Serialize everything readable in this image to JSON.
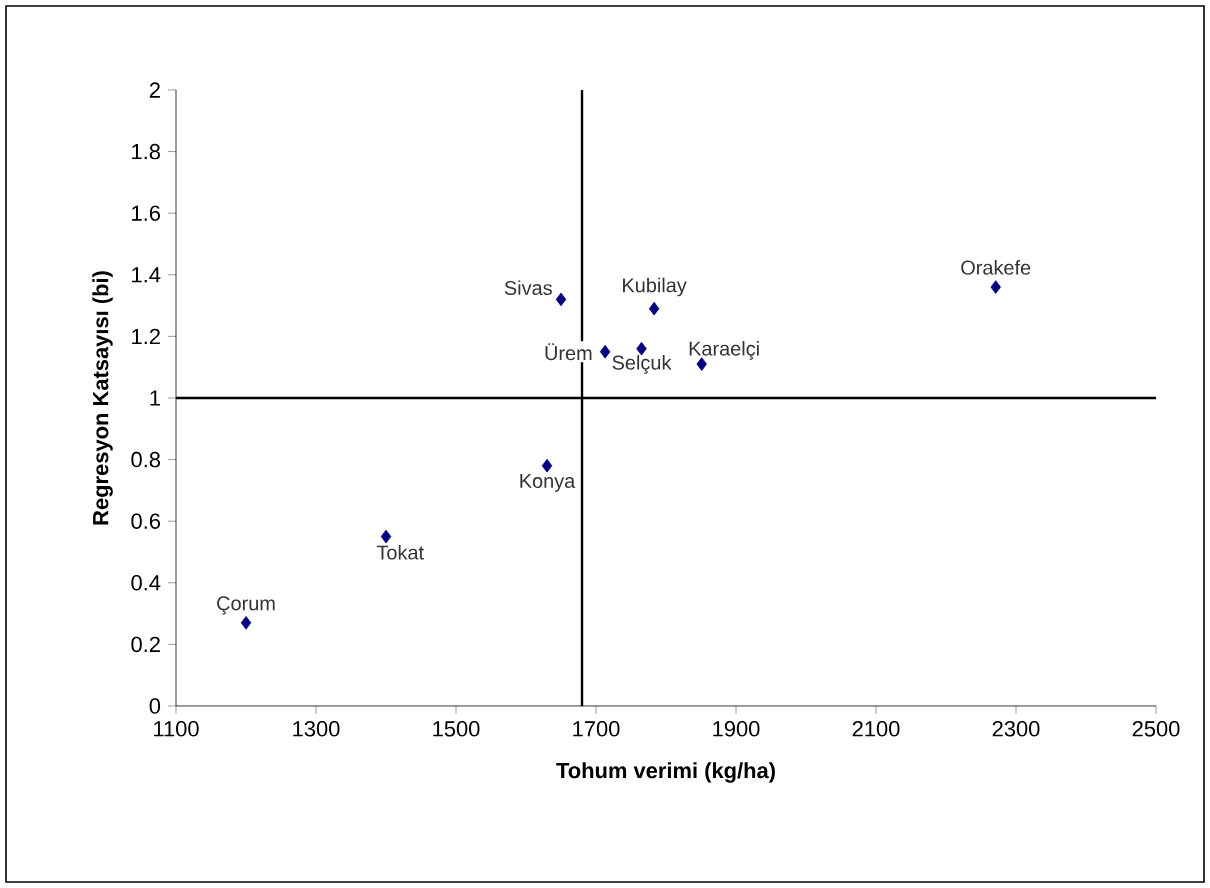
{
  "chart_data": {
    "type": "scatter",
    "xlabel": "Tohum verimi (kg/ha)",
    "ylabel": "Regresyon Katsayısı (bi)",
    "x": [
      1200,
      1400,
      1630,
      1650,
      1713,
      1765,
      1783,
      1851,
      2271
    ],
    "series": [
      {
        "color": "#000080",
        "values": [
          0.27,
          0.55,
          0.78,
          1.32,
          1.15,
          1.16,
          1.29,
          1.11,
          1.36
        ]
      }
    ],
    "xlim": [
      1100,
      2500
    ],
    "xticks": [
      1100,
      1300,
      1500,
      1700,
      1900,
      2100,
      2300,
      2500
    ],
    "ylim": [
      0,
      2
    ],
    "yticks": [
      0,
      0.2,
      0.4,
      0.6,
      0.8,
      1,
      1.2,
      1.4,
      1.6,
      1.8,
      2
    ],
    "grid": false,
    "marker": "diamond",
    "ref_lines": [
      {
        "axis": "x",
        "value": 1680,
        "color": "#000000"
      },
      {
        "axis": "y",
        "value": 1,
        "color": "#000000"
      }
    ],
    "annotations": [
      {
        "text": "Çorum",
        "x": 1200,
        "y": 0.27
      },
      {
        "text": "Tokat",
        "x": 1400,
        "y": 0.55
      },
      {
        "text": "Konya",
        "x": 1630,
        "y": 0.78
      },
      {
        "text": "Sivas",
        "x": 1650,
        "y": 1.32
      },
      {
        "text": "Ürem",
        "x": 1713,
        "y": 1.15
      },
      {
        "text": "Selçuk",
        "x": 1765,
        "y": 1.16
      },
      {
        "text": "Kubilay",
        "x": 1783,
        "y": 1.29
      },
      {
        "text": "Karaelçi",
        "x": 1851,
        "y": 1.11
      },
      {
        "text": "Orakefe",
        "x": 2271,
        "y": 1.36
      }
    ]
  }
}
